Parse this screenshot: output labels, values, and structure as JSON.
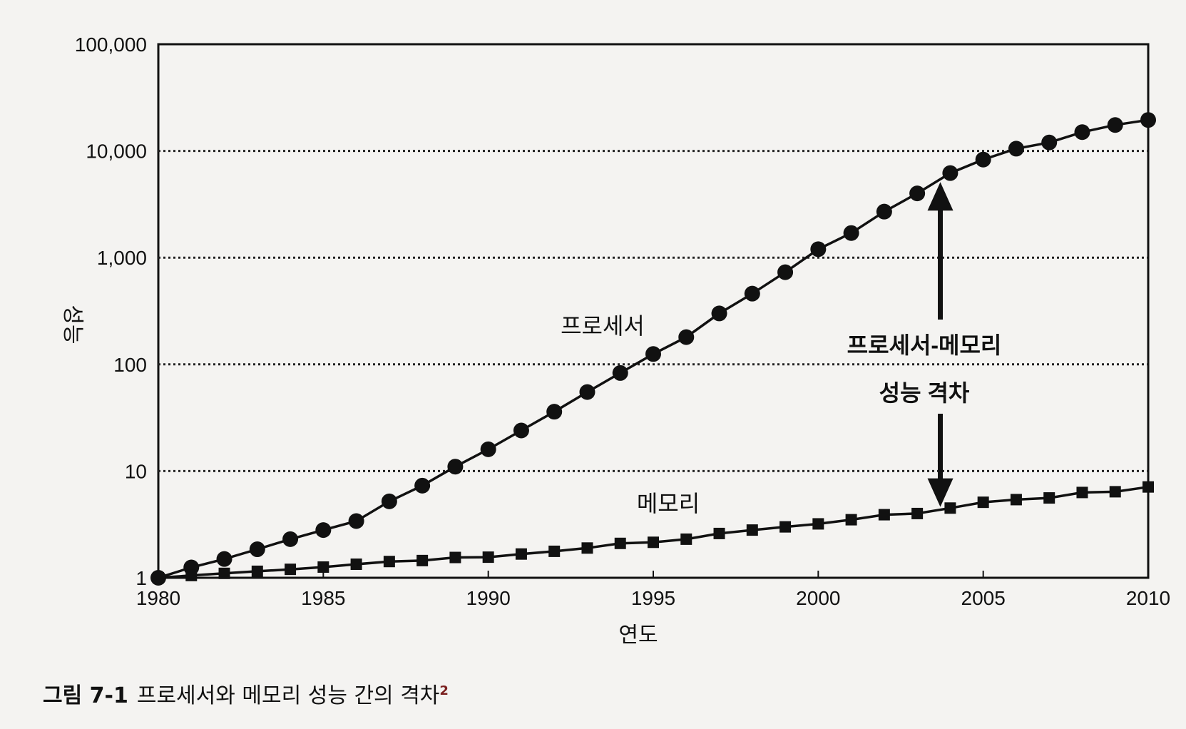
{
  "chart_data": {
    "type": "line",
    "yscale": "log",
    "ylim": [
      1,
      100000
    ],
    "xlim": [
      1980,
      2010
    ],
    "xlabel": "연도",
    "ylabel": "성능",
    "yticks": [
      "1",
      "10",
      "100",
      "1,000",
      "10,000",
      "100,000"
    ],
    "xticks": [
      "1980",
      "1985",
      "1990",
      "1995",
      "2000",
      "2005",
      "2010"
    ],
    "grid": "horizontal dotted",
    "x": [
      1980,
      1981,
      1982,
      1983,
      1984,
      1985,
      1986,
      1987,
      1988,
      1989,
      1990,
      1991,
      1992,
      1993,
      1994,
      1995,
      1996,
      1997,
      1998,
      1999,
      2000,
      2001,
      2002,
      2003,
      2004,
      2005,
      2006,
      2007,
      2008,
      2009,
      2010
    ],
    "series": [
      {
        "name": "프로세서",
        "marker": "circle",
        "values": [
          1,
          1.25,
          1.5,
          1.85,
          2.3,
          2.8,
          3.4,
          5.2,
          7.3,
          11,
          16,
          24,
          36,
          55,
          83,
          125,
          180,
          300,
          460,
          730,
          1200,
          1700,
          2700,
          4000,
          6200,
          8300,
          10500,
          12000,
          15000,
          17500,
          19500
        ]
      },
      {
        "name": "메모리",
        "marker": "square",
        "values": [
          1,
          1.05,
          1.1,
          1.15,
          1.2,
          1.26,
          1.34,
          1.42,
          1.45,
          1.55,
          1.56,
          1.67,
          1.77,
          1.9,
          2.1,
          2.15,
          2.3,
          2.6,
          2.8,
          3.0,
          3.2,
          3.5,
          3.9,
          4.0,
          4.5,
          5.1,
          5.4,
          5.6,
          6.3,
          6.4,
          7.1
        ]
      }
    ],
    "annotations": {
      "processor_label": "프로세서",
      "memory_label": "메모리",
      "gap_line1": "프로세서-메모리",
      "gap_line2": "성능 격차",
      "gap_year": 2003.7
    }
  },
  "caption": {
    "figure_number": "그림 7-1",
    "text": "프로세서와 메모리 성능 간의 격차",
    "footnote": "2"
  }
}
